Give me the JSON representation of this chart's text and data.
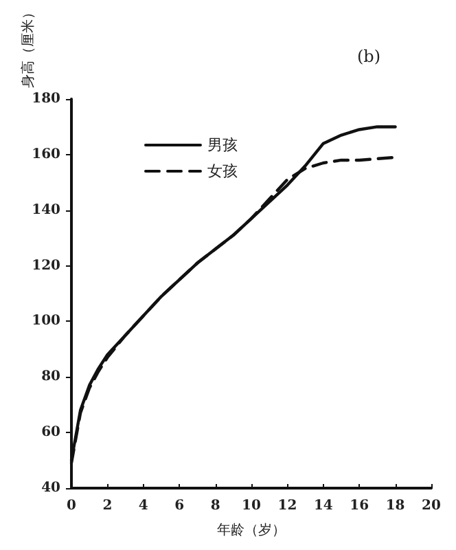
{
  "chart_data": {
    "type": "line",
    "ylabel": "身高（厘米）",
    "xlabel": "年龄（岁）",
    "annotations": [
      "(b)"
    ],
    "xlim": [
      0,
      20
    ],
    "xticks": [
      0,
      2,
      4,
      6,
      8,
      10,
      12,
      14,
      16,
      18,
      20
    ],
    "ylim": [
      40,
      180
    ],
    "yticks": [
      40,
      60,
      80,
      100,
      120,
      140,
      160,
      180
    ],
    "grid": false,
    "legend": "top left",
    "marker": "none",
    "series": [
      {
        "name": "男孩",
        "color": "#111111",
        "line_style": "solid",
        "x": [
          0,
          0.5,
          1,
          1.5,
          2,
          3,
          4,
          5,
          6,
          7,
          8,
          9,
          10,
          11,
          12,
          13,
          13.5,
          14,
          15,
          16,
          17,
          18
        ],
        "values": [
          50,
          68,
          77,
          83,
          88,
          95,
          102,
          109,
          115,
          121,
          126,
          131,
          137,
          143,
          149,
          156,
          160,
          164,
          167,
          169,
          170,
          170
        ]
      },
      {
        "name": "女孩",
        "color": "#111111",
        "line_style": "dashed",
        "x": [
          0,
          0.5,
          1,
          1.5,
          2,
          3,
          4,
          5,
          6,
          7,
          8,
          9,
          10,
          11,
          12,
          13,
          14,
          15,
          16,
          17,
          18
        ],
        "values": [
          49,
          67,
          76,
          82,
          87,
          95,
          102,
          109,
          115,
          121,
          126,
          131,
          137,
          144,
          151,
          155,
          157,
          158,
          158,
          158.5,
          159
        ]
      }
    ]
  }
}
